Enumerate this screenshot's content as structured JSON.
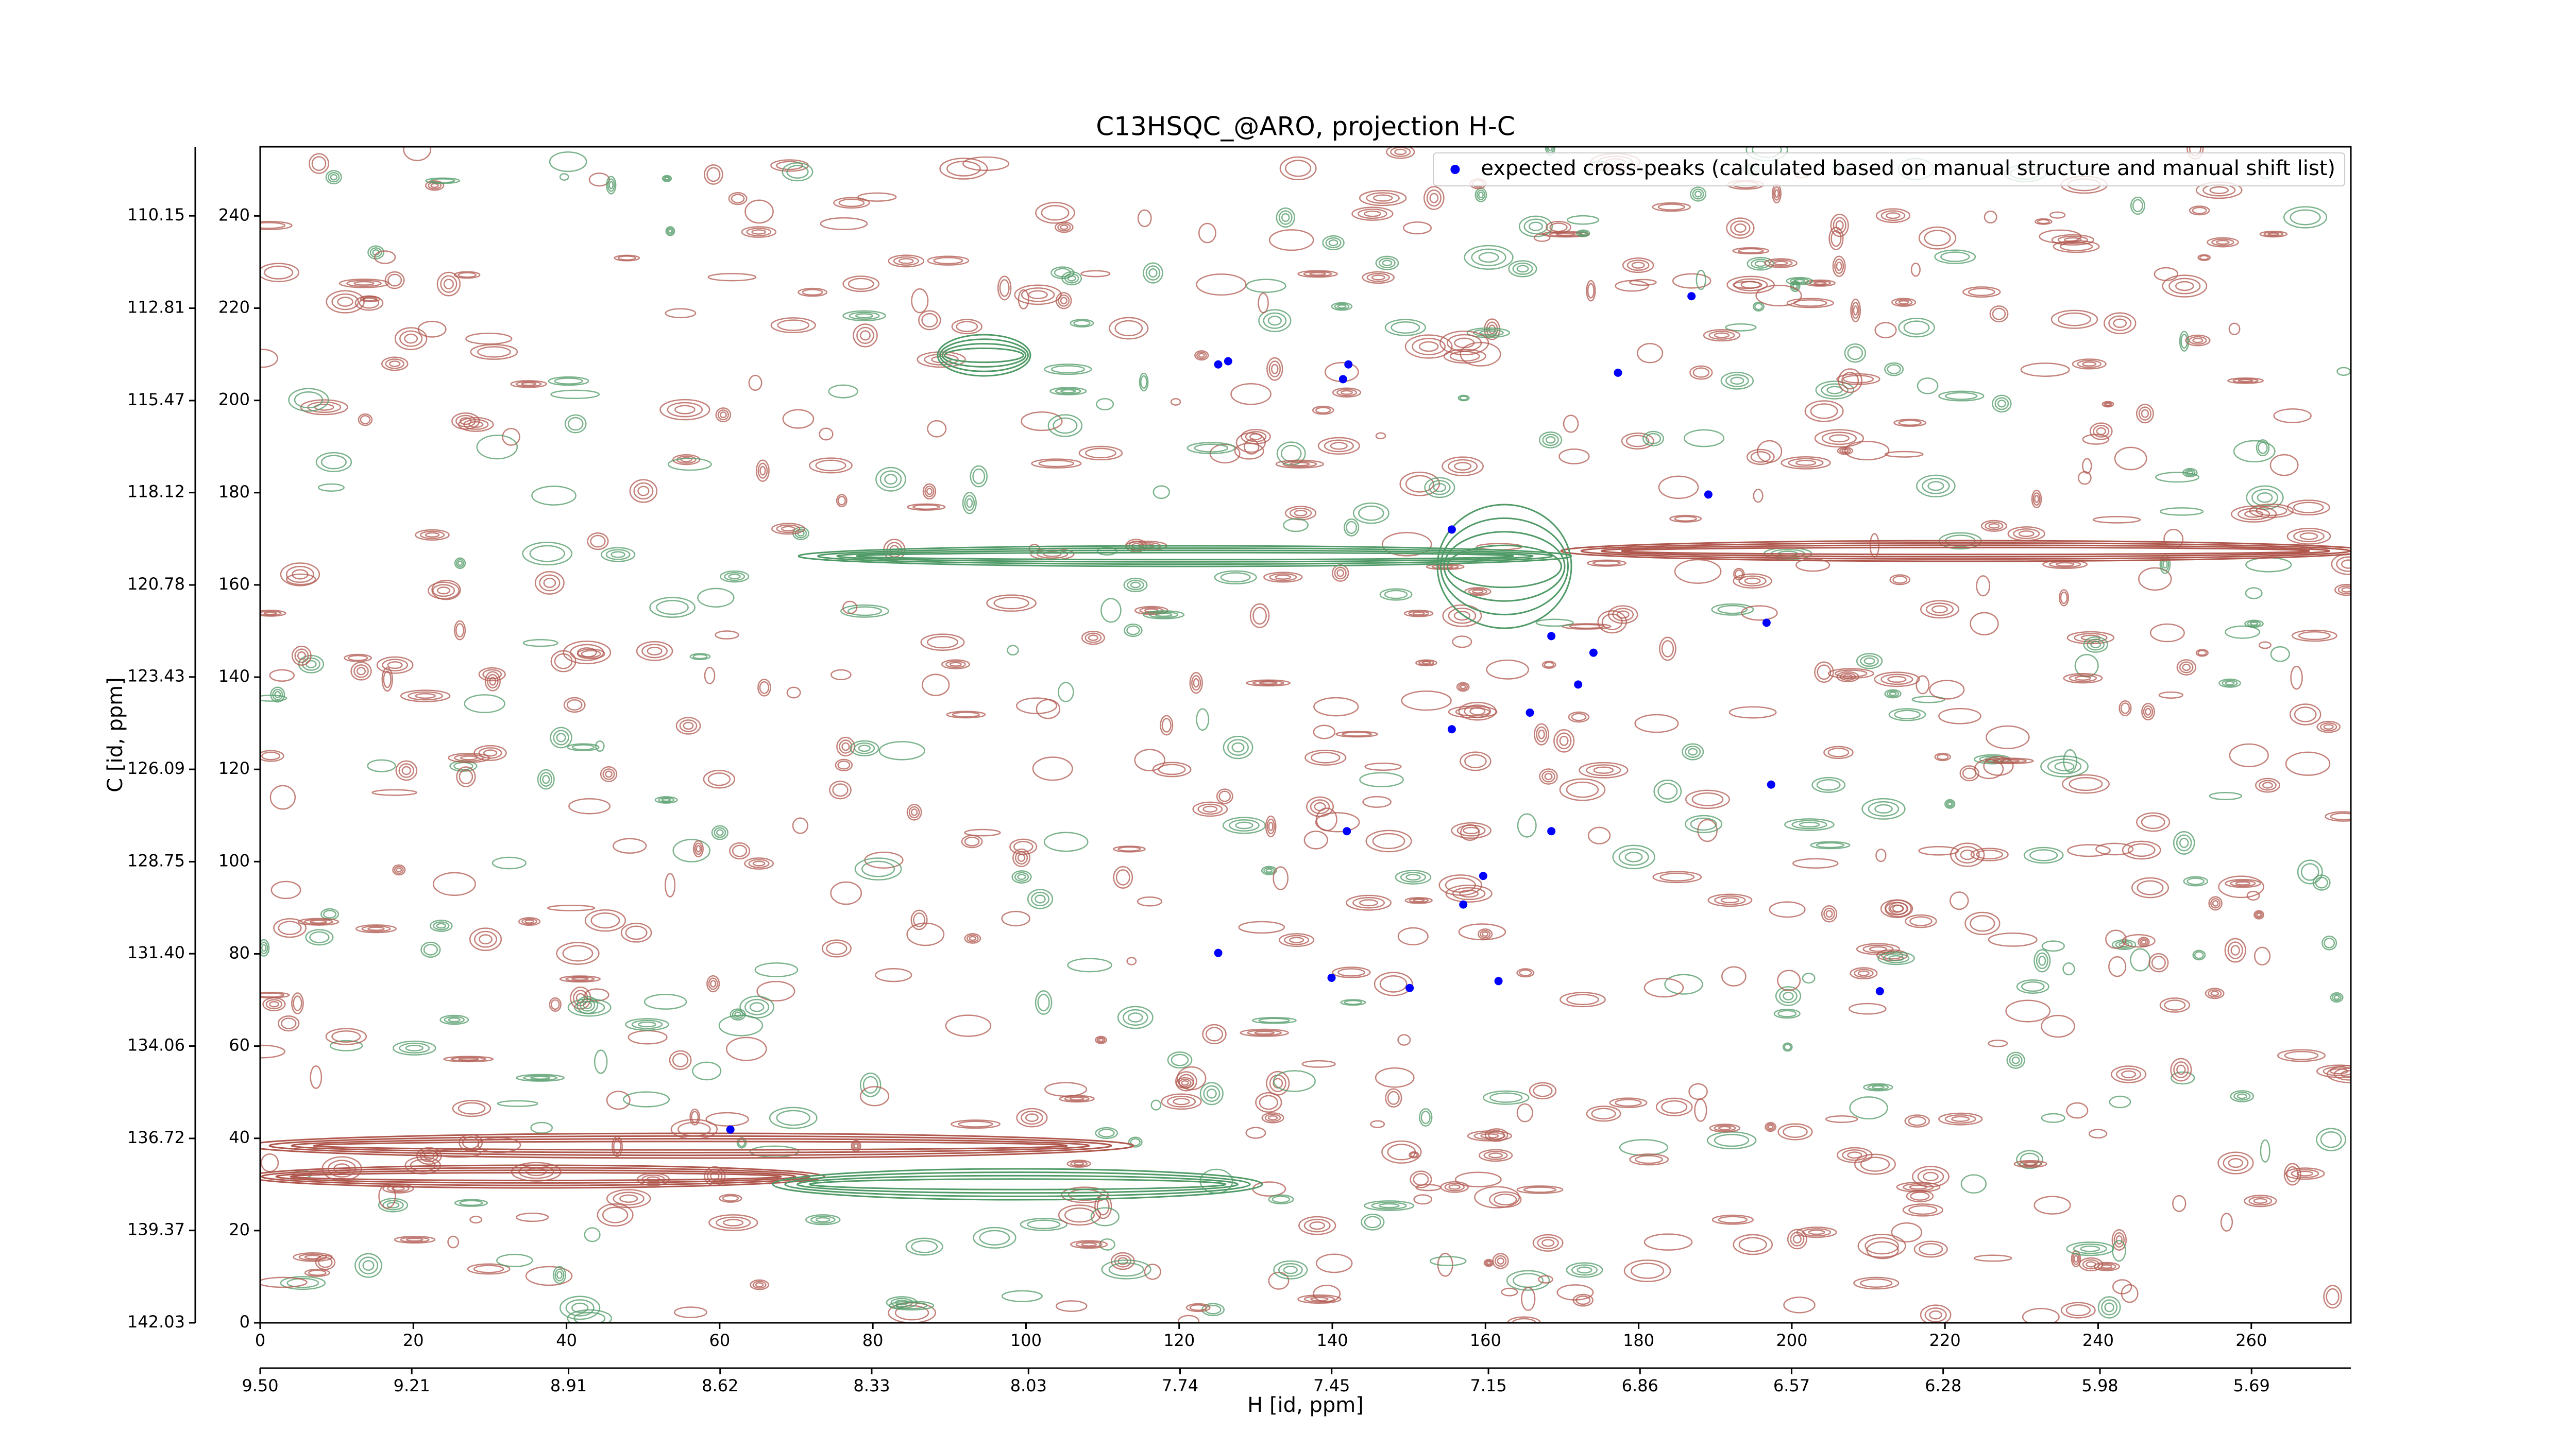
{
  "chart_data": {
    "type": "scatter",
    "title": "C13HSQC_@ARO, projection H-C",
    "xlabel": "H [id, ppm]",
    "ylabel": "C [id, ppm]",
    "legend": "upper right",
    "xlim": [
      0,
      273
    ],
    "xticks": [
      0,
      20,
      40,
      60,
      80,
      100,
      120,
      140,
      160,
      180,
      200,
      220,
      240,
      260
    ],
    "ylim": [
      0,
      255
    ],
    "yticks": [
      0,
      20,
      40,
      60,
      80,
      100,
      120,
      140,
      160,
      180,
      200,
      220,
      240
    ],
    "x2lim": [
      9.5,
      5.5
    ],
    "x2ticks": [
      {
        "value": 9.5,
        "label": "9.50"
      },
      9.21,
      8.91,
      8.62,
      8.33,
      8.03,
      7.74,
      7.45,
      7.15,
      6.86,
      6.57,
      6.28,
      5.98,
      5.69
    ],
    "y2lim": [
      142.03,
      108.16
    ],
    "y2ticks": [
      142.03,
      139.37,
      136.72,
      134.06,
      {
        "value": 131.4,
        "label": "131.40"
      },
      128.75,
      126.09,
      123.43,
      120.78,
      118.12,
      115.47,
      112.81,
      110.15
    ],
    "series": [
      {
        "name": "expected cross-peaks (calculated based on manual structure and manual shift list)",
        "color": "#0000ff",
        "x": [
          186.9,
          125.1,
          126.4,
          142.1,
          141.4,
          177.3,
          189.1,
          155.6,
          196.7,
          168.6,
          174.1,
          172.1,
          165.8,
          155.6,
          197.3,
          141.9,
          168.6,
          159.7,
          157.1,
          125.1,
          139.9,
          150.1,
          161.7,
          211.5,
          61.4
        ],
        "y": [
          222.6,
          207.8,
          208.5,
          207.8,
          204.6,
          206.0,
          179.6,
          172.0,
          151.8,
          148.9,
          145.3,
          138.4,
          132.3,
          128.7,
          116.7,
          106.6,
          106.6,
          96.9,
          90.7,
          80.2,
          74.8,
          72.6,
          74.1,
          71.9,
          41.9
        ]
      }
    ]
  }
}
